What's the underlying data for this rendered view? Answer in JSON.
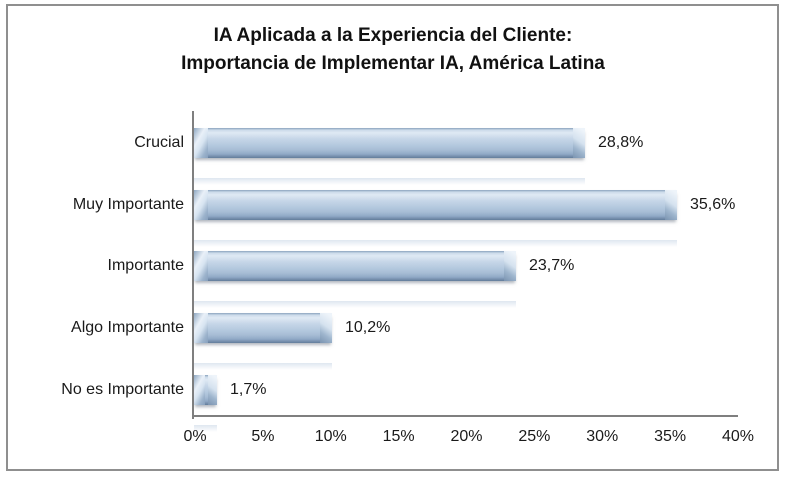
{
  "chart_data": {
    "type": "bar",
    "orientation": "horizontal",
    "title_lines": [
      "IA Aplicada a la Experiencia del Cliente:",
      "Importancia de Implementar IA, América Latina"
    ],
    "categories": [
      "Crucial",
      "Muy Importante",
      "Importante",
      "Algo Importante",
      "No es Importante"
    ],
    "values": [
      28.8,
      35.6,
      23.7,
      10.2,
      1.7
    ],
    "value_labels": [
      "28,8%",
      "35,6%",
      "23,7%",
      "10,2%",
      "1,7%"
    ],
    "x_ticks": [
      "0%",
      "5%",
      "10%",
      "15%",
      "20%",
      "25%",
      "30%",
      "35%",
      "40%"
    ],
    "xlim": [
      0,
      40
    ],
    "xlabel": "",
    "ylabel": "",
    "grid": false,
    "legend": false,
    "colors": {
      "bar_fill": "#b8cce4",
      "bar_edge": "#627c9a",
      "axis_line": "#7f7f7f",
      "frame_border": "#8f8f8f",
      "text": "#1a1a1a"
    }
  }
}
